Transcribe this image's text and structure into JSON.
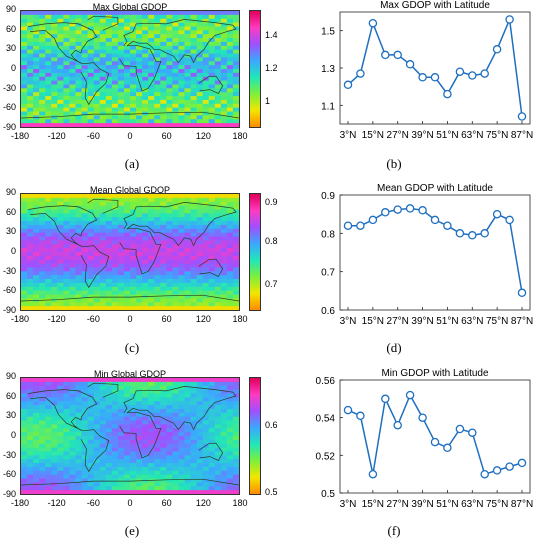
{
  "maps": [
    {
      "title": "Max Global GDOP",
      "caption": "(a)",
      "y_ticks": [
        "90",
        "60",
        "30",
        "0",
        "-30",
        "-60",
        "-90"
      ],
      "x_ticks": [
        "-180",
        "-120",
        "-60",
        "0",
        "60",
        "120",
        "180"
      ],
      "colorbar_ticks": [
        "1.4",
        "1.2",
        "1"
      ],
      "colorbar_range": [
        0.85,
        1.55
      ],
      "colormap": [
        "#ff8a00",
        "#f2e600",
        "#7cf03a",
        "#22e6b8",
        "#3aa8ff",
        "#a050ff",
        "#ff3ac0",
        "#e0005a"
      ]
    },
    {
      "title": "Mean Global GDOP",
      "caption": "(c)",
      "y_ticks": [
        "90",
        "60",
        "30",
        "0",
        "-30",
        "-60",
        "-90"
      ],
      "x_ticks": [
        "-180",
        "-120",
        "-60",
        "0",
        "60",
        "120",
        "180"
      ],
      "colorbar_ticks": [
        "0.9",
        "0.8",
        "0.7"
      ],
      "colorbar_range": [
        0.62,
        0.93
      ],
      "colormap": [
        "#ff8a00",
        "#f2e600",
        "#7cf03a",
        "#22e6b8",
        "#3aa8ff",
        "#a050ff",
        "#ff3ac0",
        "#e0005a"
      ]
    },
    {
      "title": "Min Global GDOP",
      "caption": "(e)",
      "y_ticks": [
        "90",
        "60",
        "30",
        "0",
        "-30",
        "-60",
        "-90"
      ],
      "x_ticks": [
        "-180",
        "-120",
        "-60",
        "0",
        "60",
        "120",
        "180"
      ],
      "colorbar_ticks": [
        "0.6",
        "0.5"
      ],
      "colorbar_range": [
        0.48,
        0.66
      ],
      "colormap": [
        "#ff8a00",
        "#f2e600",
        "#7cf03a",
        "#22e6b8",
        "#3aa8ff",
        "#a050ff",
        "#ff3ac0",
        "#e0005a"
      ]
    }
  ],
  "chart_data": [
    {
      "type": "line",
      "title": "Max GDOP with Latitude",
      "caption": "(b)",
      "x_tick_labels": [
        "3°N",
        "15°N",
        "27°N",
        "39°N",
        "51°N",
        "63°N",
        "75°N",
        "87°N"
      ],
      "x": [
        "3°N",
        "9°N",
        "15°N",
        "21°N",
        "27°N",
        "33°N",
        "39°N",
        "45°N",
        "51°N",
        "57°N",
        "63°N",
        "69°N",
        "75°N",
        "81°N",
        "87°N"
      ],
      "y_tick_labels": [
        "1.5",
        "1.3",
        "1.1"
      ],
      "ylim": [
        1.0,
        1.6
      ],
      "series": [
        {
          "values": [
            1.21,
            1.27,
            1.54,
            1.37,
            1.37,
            1.32,
            1.25,
            1.25,
            1.16,
            1.28,
            1.26,
            1.27,
            1.4,
            1.56,
            1.04
          ]
        }
      ],
      "color": "#1f6fc0"
    },
    {
      "type": "line",
      "title": "Mean GDOP with Latitude",
      "caption": "(d)",
      "x_tick_labels": [
        "3°N",
        "15°N",
        "27°N",
        "39°N",
        "51°N",
        "63°N",
        "75°N",
        "87°N"
      ],
      "x": [
        "3°N",
        "9°N",
        "15°N",
        "21°N",
        "27°N",
        "33°N",
        "39°N",
        "45°N",
        "51°N",
        "57°N",
        "63°N",
        "69°N",
        "75°N",
        "81°N",
        "87°N"
      ],
      "y_tick_labels": [
        "0.9",
        "0.8",
        "0.7",
        "0.6"
      ],
      "ylim": [
        0.6,
        0.9
      ],
      "series": [
        {
          "values": [
            0.82,
            0.82,
            0.835,
            0.855,
            0.862,
            0.865,
            0.86,
            0.835,
            0.82,
            0.8,
            0.795,
            0.8,
            0.85,
            0.835,
            0.645
          ]
        }
      ],
      "color": "#1f6fc0"
    },
    {
      "type": "line",
      "title": "Min GDOP with Latitude",
      "caption": "(f)",
      "x_tick_labels": [
        "3°N",
        "15°N",
        "27°N",
        "39°N",
        "51°N",
        "63°N",
        "75°N",
        "87°N"
      ],
      "x": [
        "3°N",
        "9°N",
        "15°N",
        "21°N",
        "27°N",
        "33°N",
        "39°N",
        "45°N",
        "51°N",
        "57°N",
        "63°N",
        "69°N",
        "75°N",
        "81°N",
        "87°N"
      ],
      "y_tick_labels": [
        "0.56",
        "0.54",
        "0.52",
        "0.5"
      ],
      "ylim": [
        0.5,
        0.56
      ],
      "series": [
        {
          "values": [
            0.544,
            0.541,
            0.51,
            0.55,
            0.536,
            0.552,
            0.54,
            0.527,
            0.524,
            0.534,
            0.532,
            0.51,
            0.512,
            0.514,
            0.516
          ]
        }
      ],
      "color": "#1f6fc0"
    }
  ]
}
